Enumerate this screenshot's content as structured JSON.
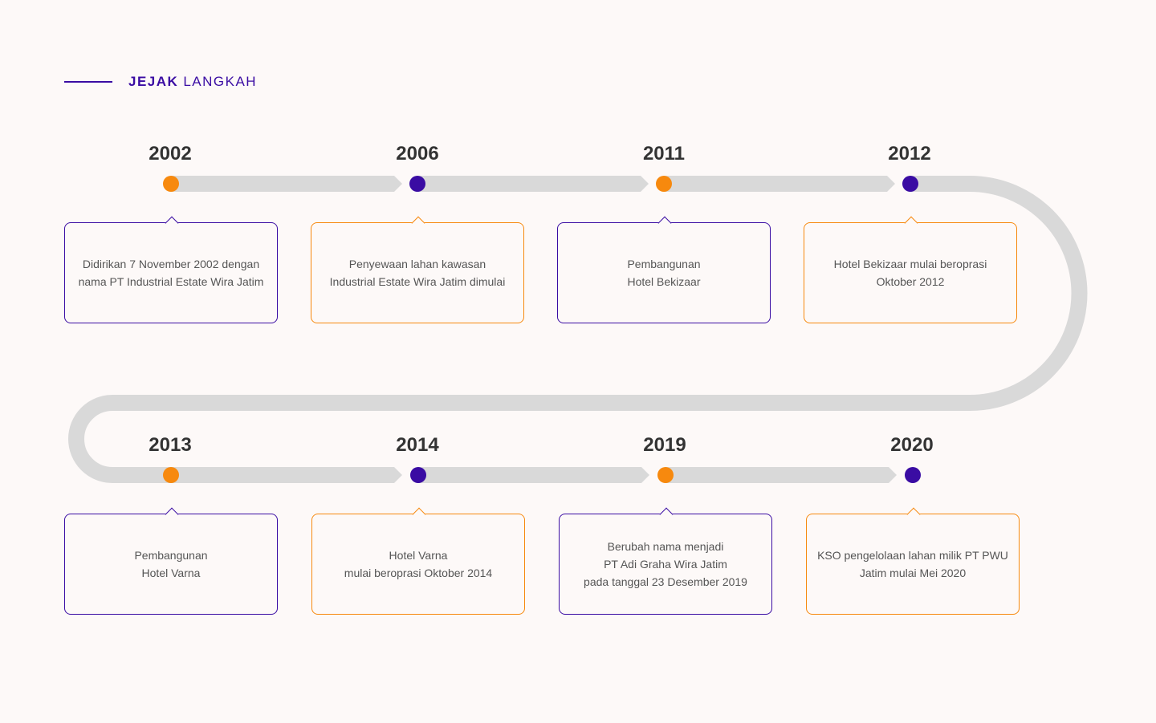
{
  "header": {
    "title_bold": "JEJAK",
    "title_light": "LANGKAH"
  },
  "colors": {
    "accent_purple": "#3a0ca3",
    "accent_orange": "#f7890e",
    "track": "#d9d9d9"
  },
  "events": [
    {
      "year": "2002",
      "text": "Didirikan 7 November 2002 dengan\nnama PT Industrial Estate Wira Jatim",
      "dot": "orange",
      "border": "purple"
    },
    {
      "year": "2006",
      "text": "Penyewaan lahan kawasan\nIndustrial Estate Wira Jatim dimulai",
      "dot": "purple",
      "border": "orange"
    },
    {
      "year": "2011",
      "text": "Pembangunan\nHotel Bekizaar",
      "dot": "orange",
      "border": "purple"
    },
    {
      "year": "2012",
      "text": "Hotel Bekizaar mulai beroprasi\nOktober 2012",
      "dot": "purple",
      "border": "orange"
    },
    {
      "year": "2013",
      "text": "Pembangunan\nHotel Varna",
      "dot": "orange",
      "border": "purple"
    },
    {
      "year": "2014",
      "text": "Hotel Varna\nmulai beroprasi Oktober 2014",
      "dot": "purple",
      "border": "orange"
    },
    {
      "year": "2019",
      "text": "Berubah nama menjadi\nPT Adi Graha Wira Jatim\npada tanggal 23 Desember 2019",
      "dot": "orange",
      "border": "purple"
    },
    {
      "year": "2020",
      "text": "KSO pengelolaan lahan milik PT PWU\nJatim mulai Mei 2020",
      "dot": "purple",
      "border": "orange"
    }
  ]
}
